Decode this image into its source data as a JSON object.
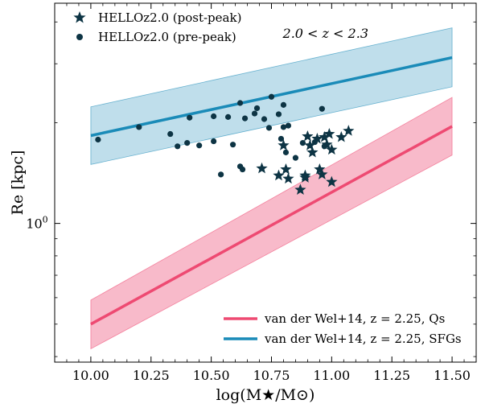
{
  "chart_data": {
    "type": "scatter",
    "title": "",
    "annotation": "2.0 < z < 2.3",
    "xlabel": "log(M★/M⊙)",
    "ylabel": "Re [kpc]",
    "xlim": [
      9.85,
      11.6
    ],
    "ylim": [
      0.385,
      4.55
    ],
    "y_scale": "log",
    "x_ticks": [
      10.0,
      10.25,
      10.5,
      10.75,
      11.0,
      11.25,
      11.5
    ],
    "x_tick_labels": [
      "10.00",
      "10.25",
      "10.50",
      "10.75",
      "11.00",
      "11.25",
      "11.50"
    ],
    "y_tick_values": [
      1.0
    ],
    "y_tick_labels": [
      "10^0"
    ],
    "legend_top": {
      "placement": "top-left",
      "entries": [
        {
          "label": "HELLOz2.0 (post-peak)",
          "marker": "star",
          "color": "#0d3444"
        },
        {
          "label": "HELLOz2.0 (pre-peak)",
          "marker": "circle",
          "color": "#0d3444"
        }
      ]
    },
    "legend_bottom": {
      "placement": "bottom-right",
      "entries": [
        {
          "label": "van der Wel+14, z = 2.25, Qs",
          "color": "#ee4a72"
        },
        {
          "label": "van der Wel+14, z = 2.25, SFGs",
          "color": "#1a8bb8"
        }
      ]
    },
    "relations": [
      {
        "name": "Qs",
        "color": "#ee4a72",
        "fill": "#f5a3b8",
        "x": [
          10.0,
          11.5
        ],
        "y": [
          0.5,
          1.95
        ],
        "lower": [
          0.422,
          1.6
        ],
        "upper": [
          0.59,
          2.38
        ]
      },
      {
        "name": "SFGs",
        "color": "#1a8bb8",
        "fill": "#a9d3e4",
        "x": [
          10.0,
          11.5
        ],
        "y": [
          1.83,
          3.13
        ],
        "lower": [
          1.5,
          2.56
        ],
        "upper": [
          2.23,
          3.84
        ]
      }
    ],
    "series": [
      {
        "name": "HELLOz2.0 (post-peak)",
        "marker": "star",
        "color": "#0d3444",
        "points": [
          [
            10.71,
            1.46
          ],
          [
            10.78,
            1.39
          ],
          [
            10.8,
            1.71
          ],
          [
            10.81,
            1.45
          ],
          [
            10.82,
            1.36
          ],
          [
            10.87,
            1.26
          ],
          [
            10.89,
            1.39
          ],
          [
            10.89,
            1.37
          ],
          [
            10.9,
            1.82
          ],
          [
            10.91,
            1.71
          ],
          [
            10.92,
            1.63
          ],
          [
            10.94,
            1.79
          ],
          [
            10.95,
            1.45
          ],
          [
            10.96,
            1.4
          ],
          [
            10.97,
            1.81
          ],
          [
            10.98,
            1.72
          ],
          [
            10.99,
            1.85
          ],
          [
            11.0,
            1.66
          ],
          [
            11.0,
            1.33
          ],
          [
            11.04,
            1.81
          ],
          [
            11.07,
            1.89
          ]
        ]
      },
      {
        "name": "HELLOz2.0 (pre-peak)",
        "marker": "circle",
        "color": "#0d3444",
        "points": [
          [
            10.03,
            1.78
          ],
          [
            10.2,
            1.94
          ],
          [
            10.33,
            1.85
          ],
          [
            10.36,
            1.7
          ],
          [
            10.4,
            1.74
          ],
          [
            10.41,
            2.07
          ],
          [
            10.45,
            1.71
          ],
          [
            10.51,
            1.76
          ],
          [
            10.51,
            2.09
          ],
          [
            10.54,
            1.4
          ],
          [
            10.57,
            2.08
          ],
          [
            10.59,
            1.72
          ],
          [
            10.62,
            2.29
          ],
          [
            10.62,
            1.48
          ],
          [
            10.63,
            1.45
          ],
          [
            10.64,
            2.06
          ],
          [
            10.68,
            2.13
          ],
          [
            10.69,
            2.21
          ],
          [
            10.72,
            2.05
          ],
          [
            10.74,
            1.93
          ],
          [
            10.75,
            2.39
          ],
          [
            10.78,
            2.12
          ],
          [
            10.79,
            1.79
          ],
          [
            10.8,
            2.26
          ],
          [
            10.8,
            1.94
          ],
          [
            10.81,
            1.63
          ],
          [
            10.82,
            1.96
          ],
          [
            10.85,
            1.57
          ],
          [
            10.88,
            1.74
          ],
          [
            10.93,
            1.75
          ],
          [
            10.96,
            2.2
          ],
          [
            10.97,
            1.7
          ]
        ]
      }
    ]
  }
}
